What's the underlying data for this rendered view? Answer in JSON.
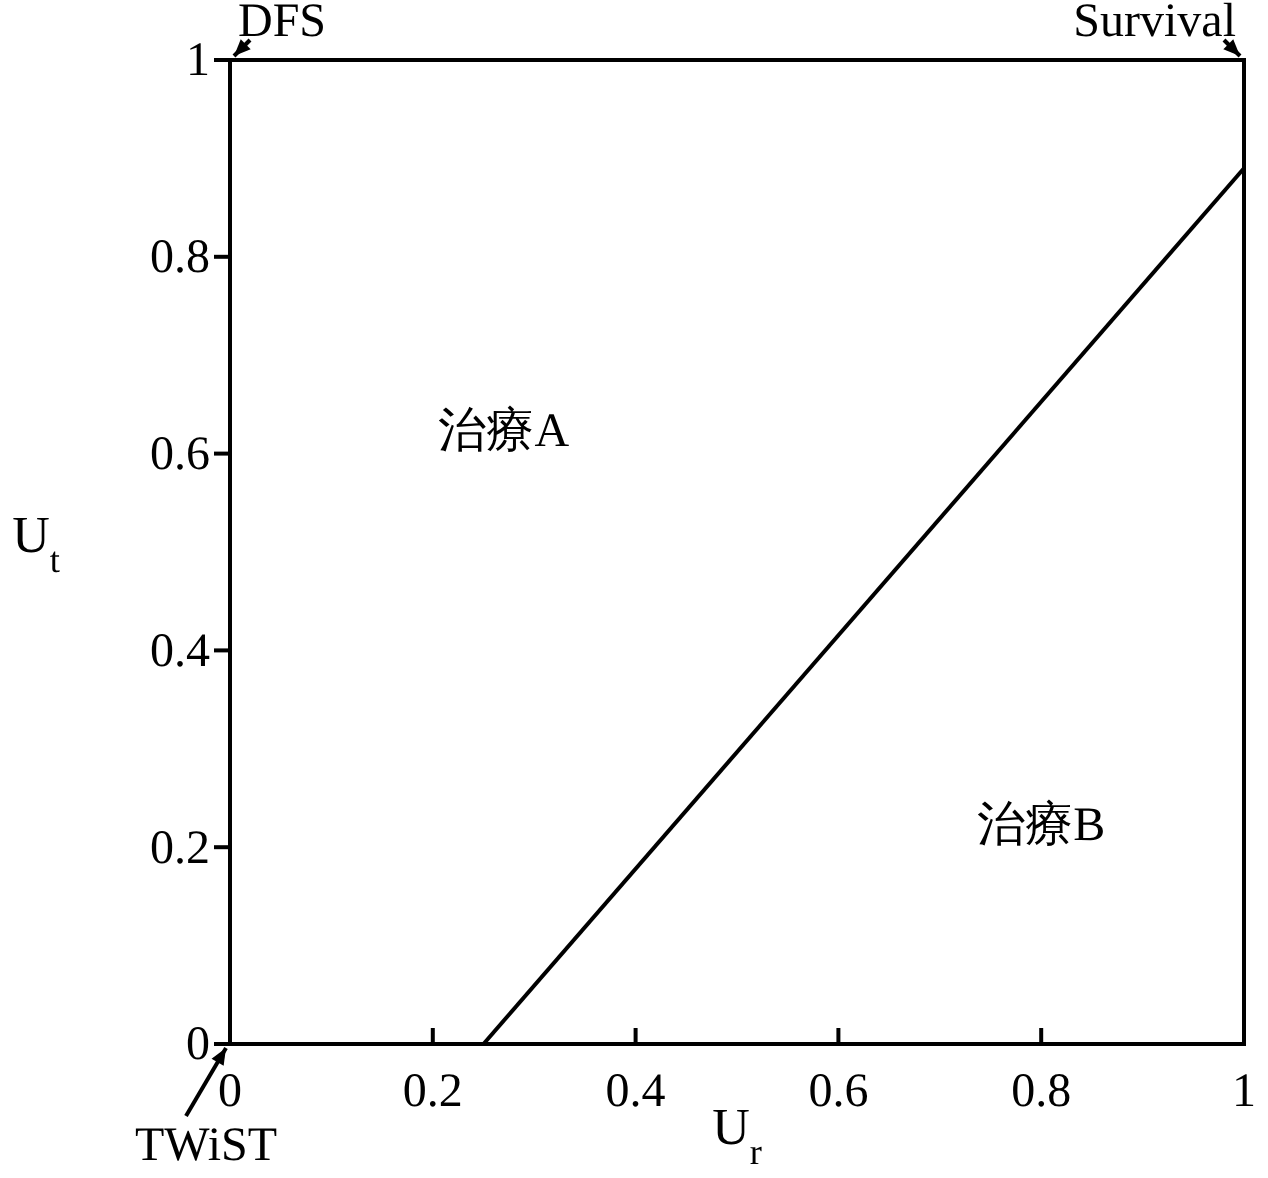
{
  "chart_data": {
    "type": "line",
    "xlabel": "U$_{r}$",
    "ylabel": "U$_{t}$",
    "x": [
      0.25,
      1
    ],
    "series": [
      {
        "color": "#000000",
        "values": [
          0,
          0.89
        ]
      }
    ],
    "xlim": [
      0,
      1
    ],
    "ylim": [
      0,
      1
    ],
    "xticks": [
      0,
      0.2,
      0.4,
      0.6,
      0.8,
      1
    ],
    "yticks": [
      0,
      0.2,
      0.4,
      0.6,
      0.8,
      1
    ],
    "grid": false,
    "marker": "none",
    "line_style": "solid",
    "annotations": [
      "DFS",
      "Survival",
      "TWiST",
      "治療A",
      "治療B"
    ]
  }
}
